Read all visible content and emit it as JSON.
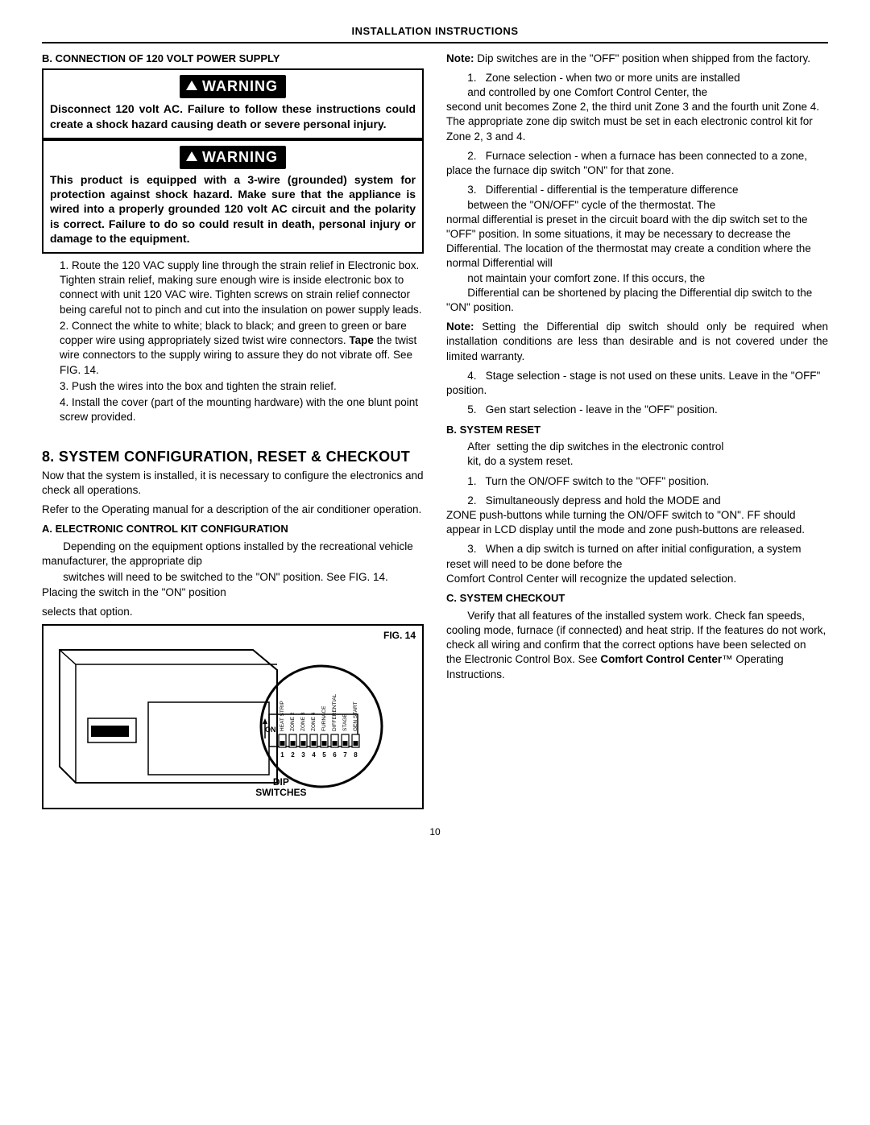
{
  "header": {
    "title": "INSTALLATION INSTRUCTIONS"
  },
  "left": {
    "sub_b": "B.    CONNECTION OF 120 VOLT POWER SUPPLY",
    "warn_label": "WARNING",
    "warn1": "Disconnect 120 volt AC. Failure to follow these instructions could create a shock hazard causing death or severe personal injury.",
    "warn2": "This product is equipped with a 3-wire (grounded) system for protection against shock hazard. Make sure that the appliance is wired into a properly grounded 120 volt AC circuit and the polarity is correct. Failure to do so could result in death, personal injury or damage to the equipment.",
    "steps": {
      "s1": "1.   Route the 120 VAC supply line through the strain relief in Electronic box.  Tighten strain relief, making sure enough wire is inside electronic box to connect with unit 120 VAC wire.  Tighten screws on strain relief connector being careful not to pinch and cut into the insulation on power supply leads.",
      "s2a": "2.   Connect the white to white; black to black; and green to green or bare copper wire using appropriately sized twist wire connectors. ",
      "s2tape": "Tape",
      "s2b": " the twist wire connectors to the supply wiring to assure they do not vibrate off.  See FIG. 14.",
      "s3": "3.   Push the wires into the box and tighten the strain relief.",
      "s4": "4.   Install the cover (part of the mounting hardware) with the one blunt point screw provided."
    },
    "section8_title": "8.  SYSTEM CONFIGURATION, RESET & CHECKOUT",
    "section8_p1": "Now that the system is installed, it is necessary to configure the electronics and check all operations.",
    "section8_p2": "Refer to the Operating manual for a description of the air conditioner operation.",
    "sub_a": "A.    ELECTRONIC CONTROL KIT CONFIGURATION",
    "a_p1": "       Depending on the equipment options installed by the recreational vehicle manufacturer, the appropriate dip",
    "a_p2": "       switches will need to be switched to the \"ON\" position. See FIG. 14. Placing the switch in the \"ON\" position",
    "a_p3": "selects that option.",
    "fig": {
      "caption": "FIG. 14",
      "dip": "DIP\nSWITCHES"
    }
  },
  "right": {
    "note1a": "Note:",
    "note1b": " Dip switches are in the \"OFF\" position when shipped from the factory.",
    "z1a": "       1.   Zone selection - when two or more units are installed",
    "z1b": "       and controlled by one Comfort Control Center, the",
    "z1c": "second unit becomes Zone 2, the third unit Zone 3 and the fourth unit Zone 4. The appropriate zone dip switch must be set in each electronic control kit for Zone 2, 3 and 4.",
    "z2a": "       2.   Furnace selection - when a furnace has been connected to a zone, place the furnace dip switch \"ON\" for that zone.",
    "z3a": "       3.   Differential - differential is the temperature difference",
    "z3b": "       between the \"ON/OFF\" cycle of the thermostat. The",
    "z3c": "normal differential is preset in the circuit board with the dip switch set to the \"OFF\" position. In some situations, it may be necessary to decrease the Differential. The location of the thermostat may create a condition where the normal Differential will",
    "z3d": "       not maintain your comfort zone. If this occurs, the",
    "z3e": "       Differential can be shortened by placing the Differential dip switch to the \"ON\" position.",
    "note2a": "Note:",
    "note2b": " Setting the Differential dip switch should only be required when installation conditions are less than desirable and is not covered under the limited warranty.",
    "z4": "       4.   Stage selection - stage is not used on these units. Leave in the \"OFF\" position.",
    "z5": "       5.   Gen start selection - leave in the \"OFF\" position.",
    "sub_b2": "B.    SYSTEM RESET",
    "b_p1": "       After  setting the dip switches in the electronic control",
    "b_p2": "       kit, do a system reset.",
    "b_s1": "       1.   Turn the ON/OFF switch to the \"OFF\" position.",
    "b_s2": "       2.   Simultaneously depress and hold the MODE and",
    "b_s2b": "ZONE push-buttons while turning the ON/OFF switch to \"ON\". FF should appear in LCD display until the mode and zone push-buttons are released.",
    "b_s3": "       3.   When a dip switch is turned on after initial configuration, a system reset will need to be done before the",
    "b_s3b": "Comfort Control Center will recognize the updated selection.",
    "sub_c": "C.    SYSTEM CHECKOUT",
    "c_p1": "       Verify that all features of the installed system work. Check fan speeds, cooling mode, furnace (if connected) and heat strip. If the features do not work, check all wiring and confirm that the correct options have been selected on    the Electronic Control Box. See ",
    "c_bold": "Comfort Control Center",
    "c_p2": "™ Operating Instructions."
  },
  "pagenum": "10",
  "style": {
    "dip_labels": [
      "HEAT STRIP",
      "ZONE 2",
      "ZONE 3",
      "ZONE 4",
      "FURNACE",
      "DIFFERENTIAL",
      "STAGE",
      "GEN START"
    ]
  }
}
